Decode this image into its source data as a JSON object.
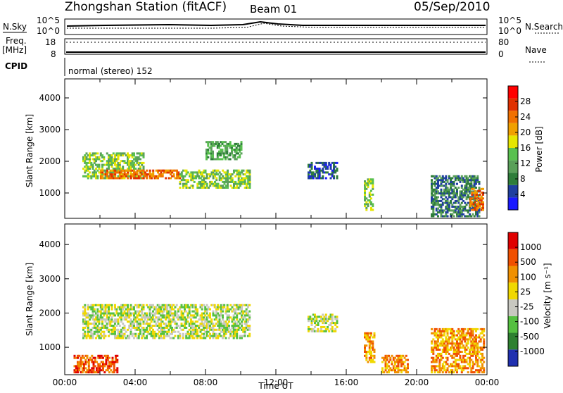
{
  "header": {
    "station": "Zhongshan Station (fitACF)",
    "beam": "Beam 01",
    "date": "05/Sep/2010"
  },
  "strip": {
    "nsky_label": "N.Sky",
    "nsky_ticks": [
      "10^5",
      "10^0"
    ],
    "nsearch_label": "N.Search",
    "nsearch_ticks": [
      "10^5",
      "10^0"
    ],
    "freq_label": "Freq.",
    "freq_unit": "[MHz]",
    "freq_ticks": [
      "18",
      "8"
    ],
    "nave_label": "Nave",
    "nave_ticks": [
      "80",
      "0"
    ],
    "cpid_label": "CPID",
    "cpid_value": "normal (stereo) 152"
  },
  "colors": {
    "power": [
      "#1a1aff",
      "#1f3f9f",
      "#2e7d3a",
      "#5aa05a",
      "#59c04f",
      "#e6e600",
      "#f0a000",
      "#f07000",
      "#e03000",
      "#ff0000"
    ],
    "velocity": [
      "#2030b0",
      "#2e8030",
      "#55c040",
      "#c8c8c0",
      "#f0d800",
      "#f09000",
      "#f05000",
      "#e00000"
    ]
  },
  "chart_data": [
    {
      "type": "heatmap",
      "panel": "power",
      "xlabel": "",
      "ylabel": "Slant Range [km]",
      "ylim": [
        200,
        4600
      ],
      "xlim": [
        "00:00",
        "24:00"
      ],
      "yticks": [
        "4000",
        "3000",
        "2000",
        "1000"
      ],
      "colorbar_label": "Power [dB]",
      "colorbar_ticks": [
        "28",
        "24",
        "20",
        "16",
        "12",
        "8",
        "4"
      ],
      "regions": [
        {
          "t": [
            1.0,
            4.5
          ],
          "r": [
            1500,
            2300
          ],
          "level": 4
        },
        {
          "t": [
            2.0,
            6.5
          ],
          "r": [
            1500,
            1800
          ],
          "level": 7
        },
        {
          "t": [
            6.5,
            10.5
          ],
          "r": [
            1200,
            1800
          ],
          "level": 4
        },
        {
          "t": [
            8.0,
            10.0
          ],
          "r": [
            2100,
            2700
          ],
          "level": 3
        },
        {
          "t": [
            13.8,
            15.5
          ],
          "r": [
            1500,
            2000
          ],
          "level": 1
        },
        {
          "t": [
            17.0,
            17.5
          ],
          "r": [
            500,
            1500
          ],
          "level": 4
        },
        {
          "t": [
            20.8,
            23.5
          ],
          "r": [
            300,
            1600
          ],
          "level": 2
        },
        {
          "t": [
            23.0,
            23.8
          ],
          "r": [
            500,
            1200
          ],
          "level": 7
        }
      ]
    },
    {
      "type": "heatmap",
      "panel": "velocity",
      "xlabel": "Time UT",
      "ylabel": "Slant Range [km]",
      "ylim": [
        200,
        4600
      ],
      "xlim": [
        "00:00",
        "24:00"
      ],
      "xticks": [
        "00:00",
        "04:00",
        "08:00",
        "12:00",
        "16:00",
        "20:00",
        "00:00"
      ],
      "yticks": [
        "4000",
        "3000",
        "2000",
        "1000"
      ],
      "colorbar_label": "Velocity [m s⁻¹]",
      "colorbar_ticks": [
        "1000",
        "500",
        "100",
        "25",
        "-25",
        "-100",
        "-500",
        "-1000"
      ],
      "regions": [
        {
          "t": [
            1.0,
            10.5
          ],
          "r": [
            1300,
            2300
          ],
          "level": 3
        },
        {
          "t": [
            0.5,
            3.0
          ],
          "r": [
            300,
            800
          ],
          "level": 6
        },
        {
          "t": [
            13.8,
            15.5
          ],
          "r": [
            1500,
            2000
          ],
          "level": 3
        },
        {
          "t": [
            17.0,
            17.6
          ],
          "r": [
            600,
            1500
          ],
          "level": 5
        },
        {
          "t": [
            18.0,
            19.5
          ],
          "r": [
            300,
            800
          ],
          "level": 5
        },
        {
          "t": [
            20.8,
            23.8
          ],
          "r": [
            300,
            1600
          ],
          "level": 5
        }
      ]
    }
  ]
}
